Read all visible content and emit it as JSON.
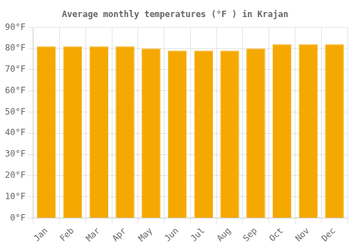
{
  "chart_data": {
    "type": "bar",
    "title": "Average monthly temperatures (°F ) in Krajan",
    "categories": [
      "Jan",
      "Feb",
      "Mar",
      "Apr",
      "May",
      "Jun",
      "Jul",
      "Aug",
      "Sep",
      "Oct",
      "Nov",
      "Dec"
    ],
    "values": [
      81,
      81,
      81,
      81,
      80,
      79,
      79,
      79,
      80,
      82,
      82,
      82
    ],
    "color": "#F5A800",
    "ylim": [
      0,
      90
    ],
    "yticks": [
      {
        "value": 0,
        "label": "0°F"
      },
      {
        "value": 10,
        "label": "10°F"
      },
      {
        "value": 20,
        "label": "20°F"
      },
      {
        "value": 30,
        "label": "30°F"
      },
      {
        "value": 40,
        "label": "40°F"
      },
      {
        "value": 50,
        "label": "50°F"
      },
      {
        "value": 60,
        "label": "60°F"
      },
      {
        "value": 70,
        "label": "70°F"
      },
      {
        "value": 80,
        "label": "80°F"
      },
      {
        "value": 90,
        "label": "90°F"
      }
    ],
    "grid": true
  }
}
